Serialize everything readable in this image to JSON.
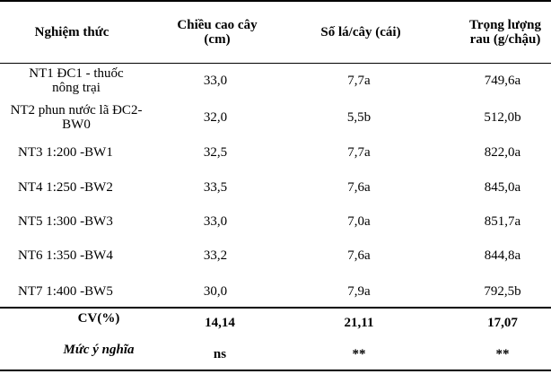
{
  "table": {
    "headers": {
      "treatment": "Nghiệm thức",
      "height": "Chiều cao cây (cm)",
      "leaves": "Số lá/cây (cái)",
      "weight": "Trọng lượng rau (g/chậu)"
    },
    "rows": [
      {
        "treatment": "NT1 ĐC1 - thuốc nông trại",
        "height": "33,0",
        "leaves": "7,7a",
        "weight": "749,6a"
      },
      {
        "treatment": "NT2 phun nước lã ĐC2- BW0",
        "height": "32,0",
        "leaves": "5,5b",
        "weight": "512,0b"
      },
      {
        "treatment": "NT3 1:200 -BW1",
        "height": "32,5",
        "leaves": "7,7a",
        "weight": "822,0a"
      },
      {
        "treatment": "NT4 1:250 -BW2",
        "height": "33,5",
        "leaves": "7,6a",
        "weight": "845,0a"
      },
      {
        "treatment": "NT5 1:300 -BW3",
        "height": "33,0",
        "leaves": "7,0a",
        "weight": "851,7a"
      },
      {
        "treatment": "NT6 1:350 -BW4",
        "height": "33,2",
        "leaves": "7,6a",
        "weight": "844,8a"
      },
      {
        "treatment": "NT7 1:400 -BW5",
        "height": "30,0",
        "leaves": "7,9a",
        "weight": "792,5b"
      }
    ],
    "cv": {
      "label": "CV(%)",
      "height": "14,14",
      "leaves": "21,11",
      "weight": "17,07"
    },
    "significance": {
      "label": "Mức ý nghĩa",
      "height": "ns",
      "leaves": "**",
      "weight": "**"
    }
  }
}
